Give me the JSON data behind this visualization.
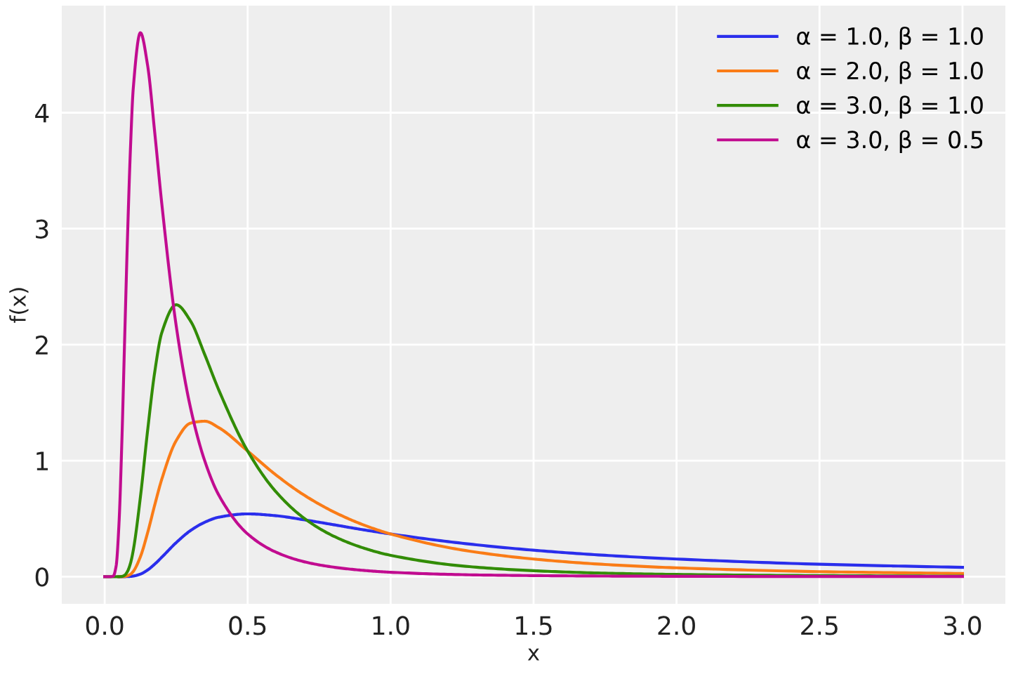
{
  "chart_data": {
    "type": "line",
    "xlabel": "x",
    "ylabel": "f(x)",
    "x": [
      0,
      0.02,
      0.03,
      0.04,
      0.05,
      0.06,
      0.07,
      0.08,
      0.09,
      0.1,
      0.125,
      0.15,
      0.175,
      0.2,
      0.25,
      0.3,
      0.35,
      0.4,
      0.5,
      0.6,
      0.7,
      0.8,
      0.9,
      1.0,
      1.25,
      1.5,
      1.75,
      2.0,
      2.5,
      3.0
    ],
    "series": [
      {
        "name": "α = 1.0, β = 1.0",
        "color": "#2a2eec",
        "values": [
          null,
          null,
          null,
          null,
          0,
          0,
          0,
          0.001,
          0.002,
          0.005,
          0.022,
          0.057,
          0.108,
          0.168,
          0.293,
          0.397,
          0.469,
          0.513,
          0.541,
          0.525,
          0.489,
          0.448,
          0.406,
          0.368,
          0.288,
          0.228,
          0.184,
          0.152,
          0.107,
          0.08
        ]
      },
      {
        "name": "α = 2.0, β = 1.0",
        "color": "#fa7c17",
        "values": [
          null,
          null,
          null,
          null,
          0,
          0,
          0.002,
          0.008,
          0.02,
          0.045,
          0.172,
          0.377,
          0.617,
          0.842,
          1.172,
          1.323,
          1.34,
          1.283,
          1.083,
          0.875,
          0.699,
          0.56,
          0.451,
          0.368,
          0.23,
          0.152,
          0.105,
          0.076,
          0.043,
          0.027
        ]
      },
      {
        "name": "α = 3.0, β = 1.0",
        "color": "#328c06",
        "values": [
          0,
          0,
          0,
          0,
          0,
          0.002,
          0.013,
          0.046,
          0.113,
          0.227,
          0.687,
          1.256,
          1.763,
          2.105,
          2.344,
          2.205,
          1.914,
          1.604,
          1.083,
          0.729,
          0.499,
          0.35,
          0.251,
          0.184,
          0.092,
          0.051,
          0.03,
          0.019,
          0.009,
          0.004
        ]
      },
      {
        "name": "α = 3.0, β = 0.5",
        "color": "#c10c90",
        "values": [
          0,
          0,
          0.005,
          0.091,
          0.454,
          1.157,
          2.06,
          2.94,
          3.68,
          4.21,
          4.689,
          4.41,
          3.83,
          3.21,
          2.165,
          1.458,
          0.998,
          0.699,
          0.368,
          0.21,
          0.127,
          0.082,
          0.055,
          0.038,
          0.017,
          0.009,
          0.005,
          0.003,
          0.001,
          0.001
        ]
      }
    ],
    "xlim": [
      -0.15,
      3.15
    ],
    "ylim": [
      -0.234,
      4.923
    ],
    "xticks": [
      {
        "value": 0,
        "label": "0.0"
      },
      {
        "value": 0.5,
        "label": "0.5"
      },
      {
        "value": 1,
        "label": "1.0"
      },
      {
        "value": 1.5,
        "label": "1.5"
      },
      {
        "value": 2,
        "label": "2.0"
      },
      {
        "value": 2.5,
        "label": "2.5"
      },
      {
        "value": 3,
        "label": "3.0"
      }
    ],
    "yticks": [
      0,
      1,
      2,
      3,
      4
    ],
    "grid": true,
    "legend": "top right",
    "marker": "none",
    "line_style": "solid"
  }
}
